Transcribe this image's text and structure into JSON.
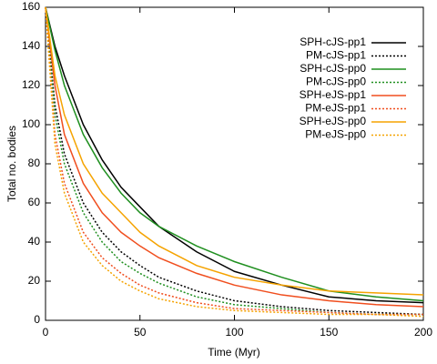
{
  "chart_data": {
    "type": "line",
    "xlabel": "Time (Myr)",
    "ylabel": "Total no. bodies",
    "x": [
      0,
      5,
      10,
      20,
      30,
      40,
      50,
      60,
      80,
      100,
      125,
      150,
      175,
      200
    ],
    "xlim": [
      0,
      200
    ],
    "xticks": [
      0,
      50,
      100,
      150,
      200
    ],
    "ylim": [
      0,
      160
    ],
    "yticks": [
      0,
      20,
      40,
      60,
      80,
      100,
      120,
      140,
      160
    ],
    "legend": "top-right",
    "series": [
      {
        "name": "SPH-cJS-pp1",
        "color": "#000000",
        "dotted": false,
        "values": [
          160,
          140,
          125,
          100,
          82,
          68,
          58,
          48,
          35,
          25,
          18,
          12,
          10,
          9
        ]
      },
      {
        "name": "PM-cJS-pp1",
        "color": "#000000",
        "dotted": true,
        "values": [
          160,
          110,
          85,
          60,
          45,
          35,
          28,
          22,
          15,
          10,
          7,
          5,
          4,
          3
        ]
      },
      {
        "name": "SPH-cJS-pp0",
        "color": "#1f8f1f",
        "dotted": false,
        "values": [
          160,
          138,
          120,
          95,
          78,
          65,
          55,
          48,
          38,
          30,
          22,
          15,
          12,
          10
        ]
      },
      {
        "name": "PM-cJS-pp0",
        "color": "#1f8f1f",
        "dotted": true,
        "values": [
          160,
          105,
          80,
          55,
          40,
          30,
          24,
          19,
          12,
          8,
          6,
          4,
          3,
          3
        ]
      },
      {
        "name": "SPH-eJS-pp1",
        "color": "#f04e1e",
        "dotted": false,
        "values": [
          160,
          120,
          95,
          70,
          55,
          45,
          38,
          32,
          24,
          18,
          13,
          10,
          8,
          7
        ]
      },
      {
        "name": "PM-eJS-pp1",
        "color": "#f04e1e",
        "dotted": true,
        "values": [
          160,
          95,
          70,
          45,
          32,
          24,
          18,
          14,
          9,
          6,
          5,
          4,
          3,
          3
        ]
      },
      {
        "name": "SPH-eJS-pp0",
        "color": "#f5a300",
        "dotted": false,
        "values": [
          160,
          125,
          105,
          80,
          65,
          55,
          45,
          38,
          28,
          22,
          18,
          15,
          14,
          13
        ]
      },
      {
        "name": "PM-eJS-pp0",
        "color": "#f5a300",
        "dotted": true,
        "values": [
          160,
          90,
          65,
          40,
          28,
          20,
          15,
          11,
          7,
          5,
          4,
          3,
          3,
          2
        ]
      }
    ]
  }
}
